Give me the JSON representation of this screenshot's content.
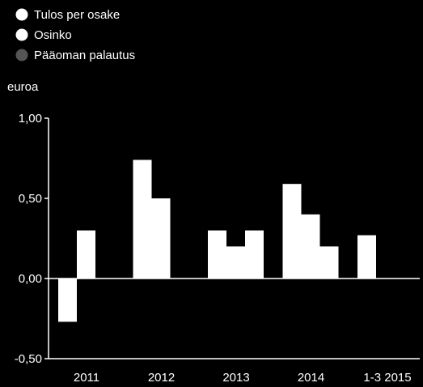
{
  "chart_data": {
    "type": "bar",
    "legend": [
      {
        "label": "Tulos per osake",
        "color": "#ffffff"
      },
      {
        "label": "Osinko",
        "color": "#ffffff"
      },
      {
        "label": "Pääoman palautus",
        "color": "#555555"
      }
    ],
    "ylabel": "euroa",
    "ylim": [
      -0.5,
      1.0
    ],
    "yticks": [
      {
        "value": 1.0,
        "label": "1,00"
      },
      {
        "value": 0.5,
        "label": "0,50"
      },
      {
        "value": 0.0,
        "label": "0,00"
      },
      {
        "value": -0.5,
        "label": "-0,50"
      }
    ],
    "categories": [
      "2011",
      "2012",
      "2013",
      "2014",
      "1-3 2015"
    ],
    "bars": [
      {
        "category": "2011",
        "values": [
          -0.27,
          0.3
        ]
      },
      {
        "category": "2012",
        "values": [
          0.74,
          0.5
        ]
      },
      {
        "category": "2013",
        "values": [
          0.3,
          0.2,
          0.3
        ]
      },
      {
        "category": "2014",
        "values": [
          0.59,
          0.4,
          0.2
        ]
      },
      {
        "category": "1-3 2015",
        "values": [
          0.27
        ]
      }
    ],
    "grid": false,
    "legend_position": "top-left"
  },
  "colors": {
    "background": "#000000",
    "bar": "#ffffff",
    "axis": "#ffffff"
  }
}
